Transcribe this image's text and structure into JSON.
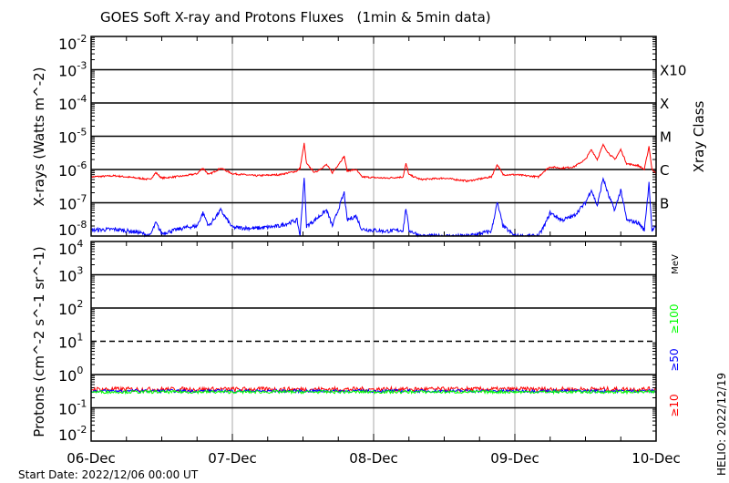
{
  "chart_data": [
    {
      "type": "line",
      "title": "GOES Soft X-ray and Protons Fluxes   (1min & 5min data)",
      "ylabel": "X-rays (Watts m^-2)",
      "ylabel_parts": [
        "X−rays  (Watts  m",
        "−2",
        ")"
      ],
      "right_label": "Xray Class",
      "yscale": "log",
      "ylim": [
        1e-08,
        0.01
      ],
      "ytick_labels": [
        {
          "base": "10",
          "exp": "-2"
        },
        {
          "base": "10",
          "exp": "-3"
        },
        {
          "base": "10",
          "exp": "-4"
        },
        {
          "base": "10",
          "exp": "-5"
        },
        {
          "base": "10",
          "exp": "-6"
        },
        {
          "base": "10",
          "exp": "-7"
        },
        {
          "base": "10",
          "exp": "-8"
        }
      ],
      "class_labels": [
        {
          "label": "X10",
          "value": 0.001
        },
        {
          "label": "X",
          "value": 0.0001
        },
        {
          "label": "M",
          "value": 1e-05
        },
        {
          "label": "C",
          "value": 1e-06
        },
        {
          "label": "B",
          "value": 1e-07
        }
      ],
      "x_unit": "hours since start",
      "xlim": [
        0,
        96
      ],
      "grid": true,
      "series": [
        {
          "color": "#ff0000",
          "points": [
            [
              0,
              6e-07
            ],
            [
              4,
              6.5e-07
            ],
            [
              8,
              5.5e-07
            ],
            [
              10,
              5e-07
            ],
            [
              11,
              8e-07
            ],
            [
              12,
              5.5e-07
            ],
            [
              16,
              6.5e-07
            ],
            [
              18,
              7.5e-07
            ],
            [
              19,
              1.1e-06
            ],
            [
              20,
              7e-07
            ],
            [
              22,
              1.1e-06
            ],
            [
              24,
              7.5e-07
            ],
            [
              28,
              6.5e-07
            ],
            [
              32,
              7e-07
            ],
            [
              35,
              9e-07
            ],
            [
              35.5,
              1.1e-06
            ],
            [
              36.2,
              6e-06
            ],
            [
              36.6,
              1.5e-06
            ],
            [
              38,
              8e-07
            ],
            [
              40,
              1.4e-06
            ],
            [
              41,
              8e-07
            ],
            [
              43,
              2.5e-06
            ],
            [
              43.5,
              9e-07
            ],
            [
              45,
              1e-06
            ],
            [
              46,
              6e-07
            ],
            [
              50,
              5.5e-07
            ],
            [
              53,
              6e-07
            ],
            [
              53.5,
              1.5e-06
            ],
            [
              54,
              7e-07
            ],
            [
              56,
              5e-07
            ],
            [
              60,
              5.5e-07
            ],
            [
              64,
              4.5e-07
            ],
            [
              68,
              6e-07
            ],
            [
              69,
              1.4e-06
            ],
            [
              70,
              7e-07
            ],
            [
              72,
              7e-07
            ],
            [
              76,
              6e-07
            ],
            [
              77,
              9e-07
            ],
            [
              78,
              1.2e-06
            ],
            [
              80,
              1.1e-06
            ],
            [
              82,
              1.2e-06
            ],
            [
              84,
              2e-06
            ],
            [
              85,
              4e-06
            ],
            [
              86,
              2e-06
            ],
            [
              87,
              5.5e-06
            ],
            [
              88,
              3e-06
            ],
            [
              89,
              2e-06
            ],
            [
              90,
              4e-06
            ],
            [
              91,
              1.5e-06
            ],
            [
              93,
              1.3e-06
            ],
            [
              94,
              1e-06
            ],
            [
              94.8,
              5e-06
            ],
            [
              95.3,
              1e-06
            ],
            [
              96,
              8e-07
            ]
          ]
        },
        {
          "color": "#0000ff",
          "points": [
            [
              0,
              1.5e-08
            ],
            [
              4,
              1.6e-08
            ],
            [
              8,
              1.3e-08
            ],
            [
              10,
              1e-08
            ],
            [
              11,
              2.5e-08
            ],
            [
              12,
              1.2e-08
            ],
            [
              16,
              1.8e-08
            ],
            [
              18,
              2e-08
            ],
            [
              19,
              5e-08
            ],
            [
              20,
              2e-08
            ],
            [
              22,
              6e-08
            ],
            [
              24,
              1.8e-08
            ],
            [
              28,
              1.7e-08
            ],
            [
              32,
              2e-08
            ],
            [
              35,
              3e-08
            ],
            [
              35.5,
              1e-08
            ],
            [
              36.2,
              6e-07
            ],
            [
              36.6,
              2e-08
            ],
            [
              38,
              3e-08
            ],
            [
              40,
              6e-08
            ],
            [
              41,
              2e-08
            ],
            [
              43,
              2e-07
            ],
            [
              43.5,
              3e-08
            ],
            [
              45,
              4e-08
            ],
            [
              46,
              1.6e-08
            ],
            [
              50,
              1.4e-08
            ],
            [
              53,
              1.5e-08
            ],
            [
              53.5,
              7e-08
            ],
            [
              54,
              1.5e-08
            ],
            [
              56,
              1e-08
            ],
            [
              60,
              1e-08
            ],
            [
              64,
              1e-08
            ],
            [
              68,
              1.4e-08
            ],
            [
              69,
              1e-07
            ],
            [
              70,
              2e-08
            ],
            [
              72,
              1e-08
            ],
            [
              76,
              1e-08
            ],
            [
              77,
              2e-08
            ],
            [
              78,
              5e-08
            ],
            [
              80,
              3e-08
            ],
            [
              82,
              4e-08
            ],
            [
              84,
              1e-07
            ],
            [
              85,
              2.5e-07
            ],
            [
              86,
              8e-08
            ],
            [
              87,
              5.5e-07
            ],
            [
              88,
              1.5e-07
            ],
            [
              89,
              6e-08
            ],
            [
              90,
              2.5e-07
            ],
            [
              91,
              3e-08
            ],
            [
              93,
              2.5e-08
            ],
            [
              94,
              1.5e-08
            ],
            [
              94.8,
              4e-07
            ],
            [
              95.3,
              1.5e-08
            ],
            [
              96,
              1.8e-08
            ]
          ]
        }
      ]
    },
    {
      "type": "line",
      "ylabel": "Protons (cm^-2 s^-1 sr^-1)",
      "yscale": "log",
      "ylim": [
        0.01,
        10000.0
      ],
      "ytick_labels": [
        {
          "base": "10",
          "exp": "4"
        },
        {
          "base": "10",
          "exp": "3"
        },
        {
          "base": "10",
          "exp": "2"
        },
        {
          "base": "10",
          "exp": "1"
        },
        {
          "base": "10",
          "exp": "0"
        },
        {
          "base": "10",
          "exp": "-1"
        },
        {
          "base": "10",
          "exp": "-2"
        }
      ],
      "threshold": 10,
      "xlim": [
        0,
        96
      ],
      "x_tick_labels": [
        "06-Dec",
        "07-Dec",
        "08-Dec",
        "09-Dec",
        "10-Dec"
      ],
      "grid": true,
      "legend_unit": "MeV",
      "series": [
        {
          "name": "≥10",
          "color": "#ff0000",
          "level": 0.36
        },
        {
          "name": "≥50",
          "color": "#0000ff",
          "level": 0.32
        },
        {
          "name": "≥100",
          "color": "#00ff00",
          "level": 0.3
        }
      ]
    }
  ],
  "footer": {
    "start_date": "Start Date: 2022/12/06 00:00 UT",
    "helio": "HELIO: 2022/12/19"
  }
}
